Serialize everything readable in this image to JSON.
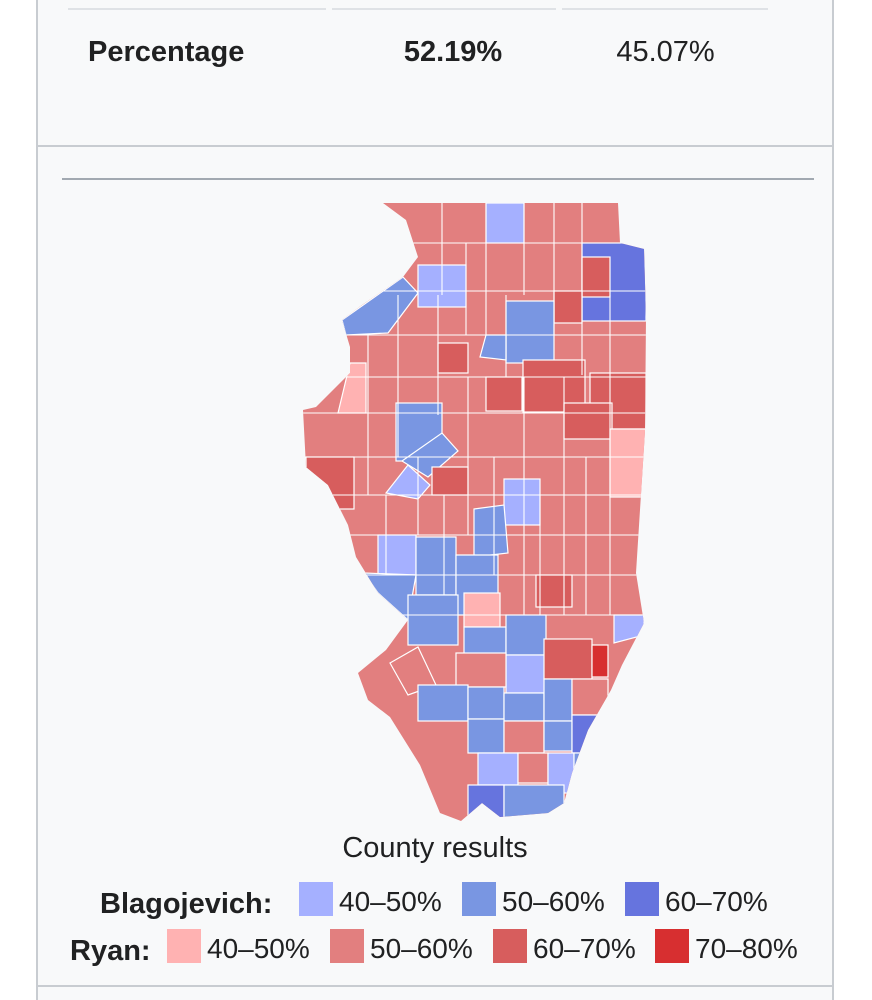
{
  "results_table": {
    "row_label": "Percentage",
    "winner_percentage": "52.19%",
    "loser_percentage": "45.07%"
  },
  "map": {
    "caption": "County results",
    "colors": {
      "blag_40_50": "#a5b0ff",
      "blag_50_60": "#7996e2",
      "blag_60_70": "#6674de",
      "ryan_40_50": "#ffb2b2",
      "ryan_50_60": "#e27f7f",
      "ryan_60_70": "#d75d5d",
      "ryan_70_80": "#d72f30"
    }
  },
  "legend": {
    "blagojevich": {
      "name": "Blagojevich:",
      "ranges": [
        "40–50%",
        "50–60%",
        "60–70%"
      ],
      "colors": [
        "#a5b0ff",
        "#7996e2",
        "#6674de"
      ]
    },
    "ryan": {
      "name": "Ryan:",
      "ranges": [
        "40–50%",
        "50–60%",
        "60–70%",
        "70–80%"
      ],
      "colors": [
        "#ffb2b2",
        "#e27f7f",
        "#d75d5d",
        "#d72f30"
      ]
    }
  }
}
